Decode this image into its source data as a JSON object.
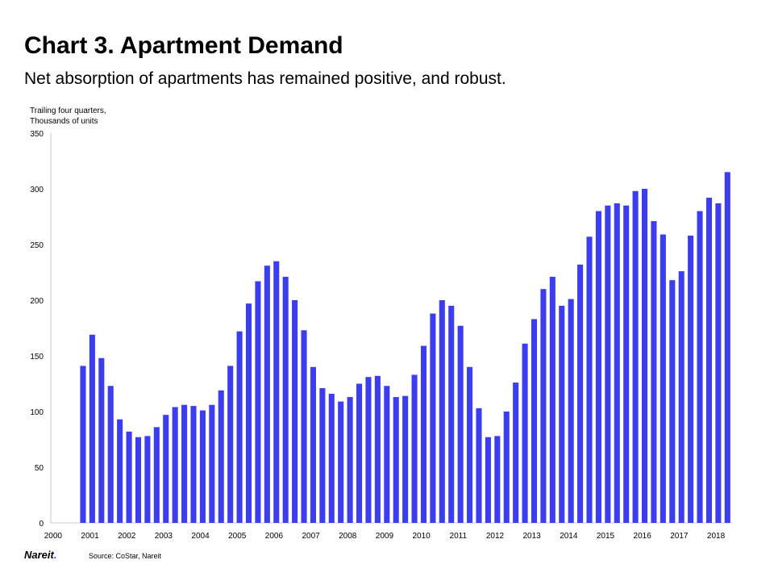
{
  "header": {
    "title": "Chart 3. Apartment Demand",
    "subtitle": "Net absorption of apartments has remained positive, and robust."
  },
  "unit_label": {
    "line1": "Trailing four quarters,",
    "line2": "Thousands of units"
  },
  "footer": {
    "logo_text": "Nareit",
    "logo_dot": ".",
    "source": "Source: CoStar, Nareit"
  },
  "colors": {
    "bar": "#3d3df0",
    "axis": "#c8c8c8",
    "text": "#000000"
  },
  "chart_data": {
    "type": "bar",
    "title": "Chart 3. Apartment Demand",
    "subtitle": "Net absorption of apartments has remained positive, and robust.",
    "ylabel": "Trailing four quarters, Thousands of units",
    "xlabel": "",
    "ylim": [
      0,
      350
    ],
    "yticks": [
      0,
      50,
      100,
      150,
      200,
      250,
      300,
      350
    ],
    "x_tick_labels": [
      "2000",
      "2001",
      "2002",
      "2003",
      "2004",
      "2005",
      "2006",
      "2007",
      "2008",
      "2009",
      "2010",
      "2011",
      "2012",
      "2013",
      "2014",
      "2015",
      "2016",
      "2017",
      "2018"
    ],
    "grid": false,
    "legend": "none",
    "categories": [
      "2000 Q1",
      "2000 Q2",
      "2000 Q3",
      "2000 Q4",
      "2001 Q1",
      "2001 Q2",
      "2001 Q3",
      "2001 Q4",
      "2002 Q1",
      "2002 Q2",
      "2002 Q3",
      "2002 Q4",
      "2003 Q1",
      "2003 Q2",
      "2003 Q3",
      "2003 Q4",
      "2004 Q1",
      "2004 Q2",
      "2004 Q3",
      "2004 Q4",
      "2005 Q1",
      "2005 Q2",
      "2005 Q3",
      "2005 Q4",
      "2006 Q1",
      "2006 Q2",
      "2006 Q3",
      "2006 Q4",
      "2007 Q1",
      "2007 Q2",
      "2007 Q3",
      "2007 Q4",
      "2008 Q1",
      "2008 Q2",
      "2008 Q3",
      "2008 Q4",
      "2009 Q1",
      "2009 Q2",
      "2009 Q3",
      "2009 Q4",
      "2010 Q1",
      "2010 Q2",
      "2010 Q3",
      "2010 Q4",
      "2011 Q1",
      "2011 Q2",
      "2011 Q3",
      "2011 Q4",
      "2012 Q1",
      "2012 Q2",
      "2012 Q3",
      "2012 Q4",
      "2013 Q1",
      "2013 Q2",
      "2013 Q3",
      "2013 Q4",
      "2014 Q1",
      "2014 Q2",
      "2014 Q3",
      "2014 Q4",
      "2015 Q1",
      "2015 Q2",
      "2015 Q3",
      "2015 Q4",
      "2016 Q1",
      "2016 Q2",
      "2016 Q3",
      "2016 Q4",
      "2017 Q1",
      "2017 Q2",
      "2017 Q3",
      "2017 Q4",
      "2018 Q1",
      "2018 Q2"
    ],
    "values": [
      null,
      null,
      null,
      141,
      169,
      148,
      123,
      93,
      82,
      77,
      78,
      86,
      97,
      104,
      106,
      105,
      101,
      106,
      119,
      141,
      172,
      197,
      217,
      231,
      235,
      221,
      200,
      173,
      140,
      121,
      116,
      109,
      113,
      125,
      131,
      132,
      123,
      113,
      114,
      133,
      159,
      188,
      200,
      195,
      177,
      140,
      103,
      77,
      78,
      100,
      126,
      161,
      183,
      210,
      221,
      195,
      201,
      232,
      257,
      280,
      285,
      287,
      285,
      298,
      300,
      271,
      259,
      218,
      226,
      258,
      280,
      292,
      287,
      315
    ]
  }
}
